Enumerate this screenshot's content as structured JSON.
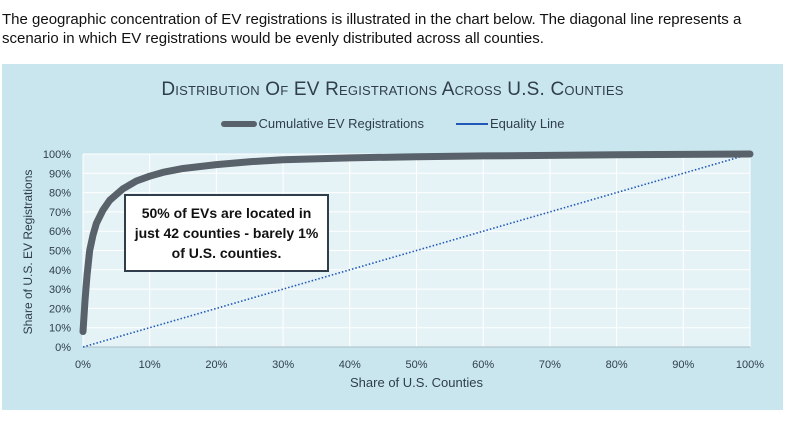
{
  "intro_text": "The geographic concentration of EV registrations is illustrated in the chart below. The diagonal line represents a scenario in which EV registrations would be evenly distributed across all counties.",
  "chart_data": {
    "type": "line",
    "title": "Distribution Of EV Registrations Across U.S. Counties",
    "xlabel": "Share of U.S. Counties",
    "ylabel": "Share of U.S. EV Registrations",
    "xlim": [
      0,
      100
    ],
    "ylim": [
      0,
      100
    ],
    "x_ticks": [
      "0%",
      "10%",
      "20%",
      "30%",
      "40%",
      "50%",
      "60%",
      "70%",
      "80%",
      "90%",
      "100%"
    ],
    "y_ticks": [
      "0%",
      "10%",
      "20%",
      "30%",
      "40%",
      "50%",
      "60%",
      "70%",
      "80%",
      "90%",
      "100%"
    ],
    "grid": true,
    "legend_position": "top-center",
    "series": [
      {
        "name": "Cumulative EV Registrations",
        "color": "#59626b",
        "style": "thick-solid",
        "x": [
          0,
          0.3,
          0.6,
          1,
          1.5,
          2,
          3,
          4,
          5,
          6,
          8,
          10,
          12,
          15,
          20,
          25,
          30,
          40,
          50,
          60,
          70,
          80,
          90,
          100
        ],
        "y": [
          8,
          24,
          37,
          50,
          58,
          64,
          71,
          76,
          79,
          82,
          86,
          88.5,
          90.5,
          92.5,
          94.5,
          96,
          97,
          98,
          98.6,
          99,
          99.3,
          99.6,
          99.8,
          100
        ]
      },
      {
        "name": "Equality Line",
        "color": "#2158b8",
        "style": "dotted",
        "x": [
          0,
          100
        ],
        "y": [
          0,
          100
        ]
      }
    ],
    "annotation": "50% of EVs are located in just 42 counties - barely 1% of U.S. counties."
  }
}
